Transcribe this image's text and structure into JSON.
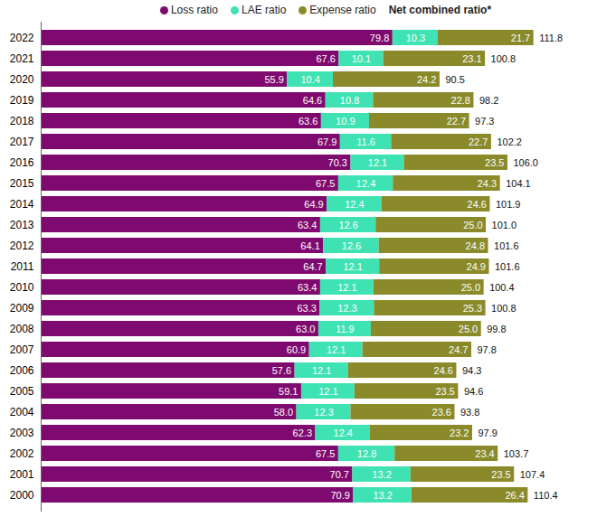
{
  "chart_data": {
    "type": "bar",
    "orientation": "horizontal",
    "stacked": true,
    "data_labels": true,
    "tick_labels": "y",
    "legend": "top",
    "categories": [
      "2022",
      "2021",
      "2020",
      "2019",
      "2018",
      "2017",
      "2016",
      "2015",
      "2014",
      "2013",
      "2012",
      "2011",
      "2010",
      "2009",
      "2008",
      "2007",
      "2006",
      "2005",
      "2004",
      "2003",
      "2002",
      "2001",
      "2000"
    ],
    "xlim": [
      0,
      125
    ],
    "xticks": [],
    "series": [
      {
        "name": "Loss ratio",
        "color": "#7f0a6f",
        "values": [
          79.8,
          67.6,
          55.9,
          64.6,
          63.6,
          67.9,
          70.3,
          67.5,
          64.9,
          63.4,
          64.1,
          64.7,
          63.4,
          63.3,
          63.0,
          60.9,
          57.6,
          59.1,
          58.0,
          62.3,
          67.5,
          70.7,
          70.9
        ],
        "value_labels": [
          "79.8",
          "67.6",
          "55.9",
          "64.6",
          "63.6",
          "67.9",
          "70.3",
          "67.5",
          "64.9",
          "63.4",
          "64.1",
          "64.7",
          "63.4",
          "63.3",
          "63.0",
          "60.9",
          "57.6",
          "59.1",
          "58.0",
          "62.3",
          "67.5",
          "70.7",
          "70.9"
        ]
      },
      {
        "name": "LAE ratio",
        "color": "#3fe3b3",
        "values": [
          10.3,
          10.1,
          10.4,
          10.8,
          10.9,
          11.6,
          12.1,
          12.4,
          12.4,
          12.6,
          12.6,
          12.1,
          12.1,
          12.3,
          11.9,
          12.1,
          12.1,
          12.1,
          12.3,
          12.4,
          12.8,
          13.2,
          13.2
        ],
        "value_labels": [
          "10.3",
          "10.1",
          "10.4",
          "10.8",
          "10.9",
          "11.6",
          "12.1",
          "12.4",
          "12.4",
          "12.6",
          "12.6",
          "12.1",
          "12.1",
          "12.3",
          "11.9",
          "12.1",
          "12.1",
          "12.1",
          "12.3",
          "12.4",
          "12.8",
          "13.2",
          "13.2"
        ]
      },
      {
        "name": "Expense ratio",
        "color": "#8a8a2b",
        "values": [
          21.7,
          23.1,
          24.2,
          22.8,
          22.7,
          22.7,
          23.5,
          24.3,
          24.6,
          25.0,
          24.8,
          24.9,
          25.0,
          25.3,
          25.0,
          24.7,
          24.6,
          23.5,
          23.6,
          23.2,
          23.4,
          23.5,
          26.4
        ],
        "value_labels": [
          "21.7",
          "23.1",
          "24.2",
          "22.8",
          "22.7",
          "22.7",
          "23.5",
          "24.3",
          "24.6",
          "25.0",
          "24.8",
          "24.9",
          "25.0",
          "25.3",
          "25.0",
          "24.7",
          "24.6",
          "23.5",
          "23.6",
          "23.2",
          "23.4",
          "23.5",
          "26.4"
        ]
      }
    ],
    "totals": {
      "name": "Net combined ratio*",
      "values": [
        111.8,
        100.8,
        90.5,
        98.2,
        97.3,
        102.2,
        106.0,
        104.1,
        101.9,
        101.0,
        101.6,
        101.6,
        100.4,
        100.8,
        99.8,
        97.8,
        94.3,
        94.6,
        93.8,
        97.9,
        103.7,
        107.4,
        110.4
      ],
      "value_labels": [
        "111.8",
        "100.8",
        "90.5",
        "98.2",
        "97.3",
        "102.2",
        "106.0",
        "104.1",
        "101.9",
        "101.0",
        "101.6",
        "101.6",
        "100.4",
        "100.8",
        "99.8",
        "97.8",
        "94.3",
        "94.6",
        "93.8",
        "97.9",
        "103.7",
        "107.4",
        "110.4"
      ]
    }
  }
}
